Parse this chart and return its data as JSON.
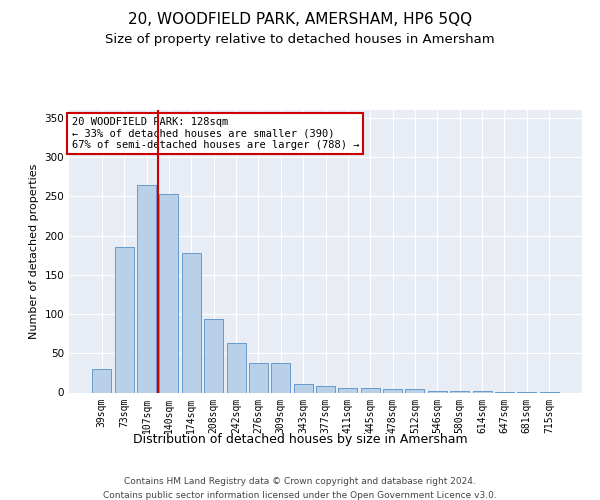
{
  "title": "20, WOODFIELD PARK, AMERSHAM, HP6 5QQ",
  "subtitle": "Size of property relative to detached houses in Amersham",
  "xlabel": "Distribution of detached houses by size in Amersham",
  "ylabel": "Number of detached properties",
  "categories": [
    "39sqm",
    "73sqm",
    "107sqm",
    "140sqm",
    "174sqm",
    "208sqm",
    "242sqm",
    "276sqm",
    "309sqm",
    "343sqm",
    "377sqm",
    "411sqm",
    "445sqm",
    "478sqm",
    "512sqm",
    "546sqm",
    "580sqm",
    "614sqm",
    "647sqm",
    "681sqm",
    "715sqm"
  ],
  "values": [
    30,
    185,
    265,
    253,
    178,
    94,
    63,
    38,
    38,
    11,
    8,
    6,
    6,
    4,
    4,
    2,
    2,
    2,
    1,
    1,
    1
  ],
  "bar_color": "#b8d0e8",
  "bar_edge_color": "#6699cc",
  "vline_color": "#cc0000",
  "vline_pos": 2.5,
  "annotation_line1": "20 WOODFIELD PARK: 128sqm",
  "annotation_line2": "← 33% of detached houses are smaller (390)",
  "annotation_line3": "67% of semi-detached houses are larger (788) →",
  "annotation_box_color": "#ffffff",
  "annotation_box_edge": "#cc0000",
  "ylim": [
    0,
    360
  ],
  "yticks": [
    0,
    50,
    100,
    150,
    200,
    250,
    300,
    350
  ],
  "background_color": "#e8ecf5",
  "grid_color": "#ffffff",
  "footer1": "Contains HM Land Registry data © Crown copyright and database right 2024.",
  "footer2": "Contains public sector information licensed under the Open Government Licence v3.0.",
  "title_fontsize": 11,
  "subtitle_fontsize": 9.5,
  "xlabel_fontsize": 9,
  "ylabel_fontsize": 8,
  "tick_fontsize": 7,
  "annot_fontsize": 7.5,
  "footer_fontsize": 6.5
}
